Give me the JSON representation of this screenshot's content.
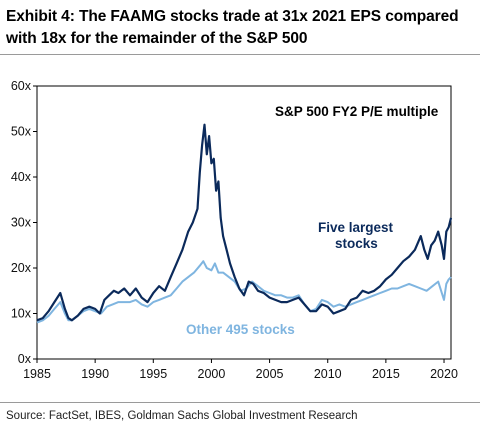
{
  "title": "Exhibit 4: The FAAMG stocks trade at 31x 2021 EPS compared with 18x for the remainder of the S&P 500",
  "source": "Source: FactSet, IBES, Goldman Sachs Global Investment Research",
  "colors": {
    "dark": "#0b2a5b",
    "light": "#7fb5e0",
    "frame": "#000000"
  },
  "chart_data": {
    "type": "line",
    "title": "S&P 500 FY2 P/E multiple",
    "xlabel": "",
    "ylabel": "",
    "xlim": [
      1985,
      2020.6
    ],
    "ylim": [
      0,
      60
    ],
    "x_ticks": [
      1985,
      1990,
      1995,
      2000,
      2005,
      2010,
      2015,
      2020
    ],
    "x_tick_labels": [
      "1985",
      "1990",
      "1995",
      "2000",
      "2005",
      "2010",
      "2015",
      "2020"
    ],
    "y_ticks": [
      0,
      10,
      20,
      30,
      40,
      50,
      60
    ],
    "y_tick_labels": [
      "0x",
      "10x",
      "20x",
      "30x",
      "40x",
      "50x",
      "60x"
    ],
    "grid": false,
    "series": [
      {
        "name": "Five largest stocks",
        "color": "#0b2a5b",
        "x": [
          1985,
          1985.5,
          1986,
          1986.5,
          1987,
          1987.4,
          1987.7,
          1988,
          1988.5,
          1989,
          1989.5,
          1990,
          1990.4,
          1990.8,
          1991.2,
          1991.6,
          1992,
          1992.5,
          1993,
          1993.5,
          1994,
          1994.5,
          1995,
          1995.5,
          1996,
          1996.5,
          1997,
          1997.5,
          1998,
          1998.4,
          1998.8,
          1999,
          1999.2,
          1999.4,
          1999.6,
          1999.8,
          2000,
          2000.2,
          2000.4,
          2000.6,
          2000.8,
          2001,
          2001.3,
          2001.6,
          2002,
          2002.4,
          2002.8,
          2003.2,
          2003.6,
          2004,
          2004.5,
          2005,
          2005.5,
          2006,
          2006.5,
          2007,
          2007.5,
          2008,
          2008.5,
          2009,
          2009.5,
          2010,
          2010.5,
          2011,
          2011.5,
          2012,
          2012.5,
          2013,
          2013.5,
          2014,
          2014.5,
          2015,
          2015.5,
          2016,
          2016.5,
          2017,
          2017.5,
          2018,
          2018.3,
          2018.6,
          2018.9,
          2019.2,
          2019.5,
          2019.8,
          2020,
          2020.2,
          2020.4,
          2020.6
        ],
        "values": [
          8.5,
          9.0,
          10.5,
          12.5,
          14.5,
          11.0,
          9.0,
          8.5,
          9.5,
          11.0,
          11.5,
          11.0,
          10.0,
          13.0,
          14.0,
          15.0,
          14.5,
          15.5,
          14.0,
          15.5,
          13.5,
          12.5,
          14.5,
          16.0,
          15.0,
          18.0,
          21.0,
          24.0,
          28.0,
          30.0,
          33.0,
          41.0,
          47.0,
          51.5,
          45.0,
          49.0,
          43.0,
          44.0,
          37.0,
          39.0,
          31.0,
          27.0,
          24.0,
          21.0,
          18.0,
          15.5,
          14.0,
          17.0,
          16.5,
          15.0,
          14.5,
          13.5,
          13.0,
          12.5,
          12.5,
          13.0,
          13.5,
          12.0,
          10.5,
          10.5,
          12.0,
          11.5,
          10.0,
          10.5,
          11.0,
          13.0,
          13.5,
          15.0,
          14.5,
          15.0,
          16.0,
          17.5,
          18.5,
          20.0,
          21.5,
          22.5,
          24.0,
          27.0,
          24.0,
          22.0,
          25.0,
          26.0,
          28.0,
          25.0,
          22.0,
          28.0,
          29.0,
          31.0
        ]
      },
      {
        "name": "Other 495 stocks",
        "color": "#7fb5e0",
        "x": [
          1985,
          1985.5,
          1986,
          1986.5,
          1987,
          1987.4,
          1987.7,
          1988,
          1988.5,
          1989,
          1989.5,
          1990,
          1990.5,
          1991,
          1991.5,
          1992,
          1992.5,
          1993,
          1993.5,
          1994,
          1994.5,
          1995,
          1995.5,
          1996,
          1996.5,
          1997,
          1997.5,
          1998,
          1998.5,
          1999,
          1999.3,
          1999.6,
          2000,
          2000.3,
          2000.6,
          2001,
          2001.5,
          2002,
          2002.5,
          2003,
          2003.5,
          2004,
          2004.5,
          2005,
          2005.5,
          2006,
          2006.5,
          2007,
          2007.5,
          2008,
          2008.5,
          2009,
          2009.5,
          2010,
          2010.5,
          2011,
          2011.5,
          2012,
          2012.5,
          2013,
          2013.5,
          2014,
          2014.5,
          2015,
          2015.5,
          2016,
          2016.5,
          2017,
          2017.5,
          2018,
          2018.5,
          2019,
          2019.5,
          2020,
          2020.2,
          2020.4,
          2020.6
        ],
        "values": [
          8.0,
          8.5,
          9.5,
          11.0,
          12.5,
          10.0,
          8.5,
          8.5,
          9.5,
          10.5,
          11.0,
          10.5,
          10.0,
          11.5,
          12.0,
          12.5,
          12.5,
          12.5,
          13.0,
          12.0,
          11.5,
          12.5,
          13.0,
          13.5,
          14.0,
          15.5,
          17.0,
          18.0,
          19.0,
          20.5,
          21.5,
          20.0,
          19.5,
          21.0,
          19.0,
          19.0,
          18.0,
          17.0,
          15.0,
          15.5,
          17.0,
          16.0,
          15.0,
          14.5,
          14.0,
          14.0,
          13.5,
          13.5,
          14.0,
          12.0,
          10.5,
          11.0,
          13.0,
          12.5,
          11.5,
          12.0,
          11.5,
          12.0,
          12.5,
          13.0,
          13.5,
          14.0,
          14.5,
          15.0,
          15.5,
          15.5,
          16.0,
          16.5,
          16.0,
          15.5,
          15.0,
          16.0,
          17.0,
          13.0,
          16.5,
          17.5,
          18.0
        ]
      }
    ],
    "annotations": {
      "chart_title": "S&P 500 FY2 P/E multiple",
      "dark_label_line1": "Five largest",
      "dark_label_line2": "stocks",
      "light_label": "Other 495 stocks"
    }
  }
}
